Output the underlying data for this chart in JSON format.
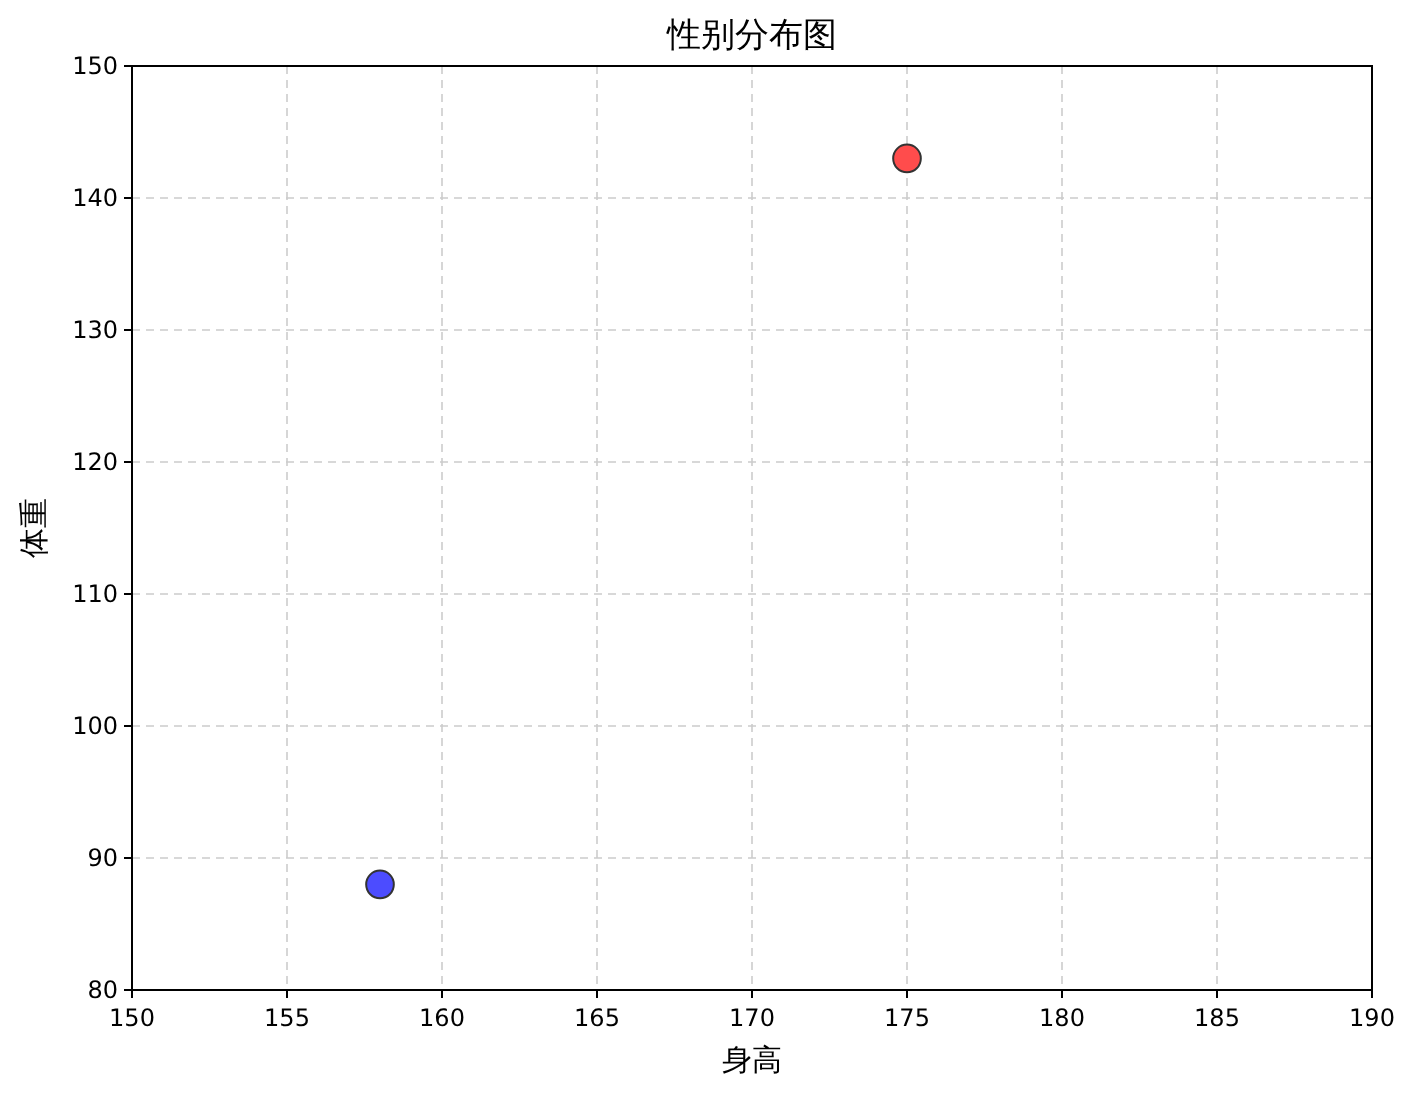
{
  "chart_data": {
    "type": "scatter",
    "title": "性别分布图",
    "xlabel": "身高",
    "ylabel": "体重",
    "x": [
      158,
      175
    ],
    "values": [
      88,
      143
    ],
    "colors": [
      "#4c4cff",
      "#ff4c4c"
    ],
    "xlim": [
      150,
      190
    ],
    "xticks": [
      150,
      155,
      160,
      165,
      170,
      175,
      180,
      185,
      190
    ],
    "ylim": [
      80,
      150
    ],
    "yticks": [
      80,
      90,
      100,
      110,
      120,
      130,
      140,
      150
    ],
    "grid": true,
    "marker": "circle"
  }
}
